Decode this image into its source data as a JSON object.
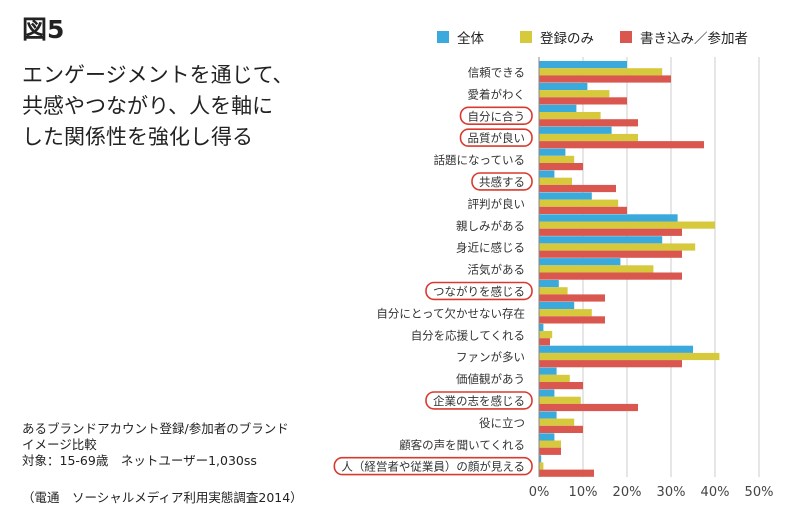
{
  "figure_label": "図5",
  "headline": [
    "エンゲージメントを通じて、",
    "共感やつながり、人を軸に",
    "した関係性を強化し得る"
  ],
  "note": [
    "あるブランドアカウント登録/参加者のブランド",
    "イメージ比較",
    "対象：15-69歳　ネットユーザー1,030ss"
  ],
  "source": "（電通　ソーシャルメディア利用実態調査2014）",
  "colors": {
    "blue": "#3aa9dc",
    "yellow": "#d6c93b",
    "red": "#d9574f",
    "circle": "#d93a2f",
    "grid": "#cccccc",
    "axis": "#888888"
  },
  "chart_data": {
    "type": "bar",
    "orientation": "horizontal",
    "categories": [
      "信頼できる",
      "愛着がわく",
      "自分に合う",
      "品質が良い",
      "話題になっている",
      "共感する",
      "評判が良い",
      "親しみがある",
      "身近に感じる",
      "活気がある",
      "つながりを感じる",
      "自分にとって欠かせない存在",
      "自分を応援してくれる",
      "ファンが多い",
      "価値観があう",
      "企業の志を感じる",
      "役に立つ",
      "顧客の声を聞いてくれる",
      "人（経営者や従業員）の顔が見える"
    ],
    "highlighted": [
      "自分に合う",
      "品質が良い",
      "共感する",
      "つながりを感じる",
      "企業の志を感じる",
      "人（経営者や従業員）の顔が見える"
    ],
    "series": [
      {
        "name": "全体",
        "color": "#3aa9dc",
        "values": [
          20,
          11,
          8.5,
          16.5,
          6,
          3.5,
          12,
          31.5,
          28,
          18.5,
          4.5,
          8,
          1,
          35,
          4,
          3.5,
          4,
          3.5,
          0.5
        ]
      },
      {
        "name": "登録のみ",
        "color": "#d6c93b",
        "values": [
          28,
          16,
          14,
          22.5,
          8,
          7.5,
          18,
          40,
          35.5,
          26,
          6.5,
          12,
          3,
          41,
          7,
          9.5,
          8,
          5,
          1
        ]
      },
      {
        "name": "書き込み／参加者",
        "color": "#d9574f",
        "values": [
          30,
          20,
          22.5,
          37.5,
          10,
          17.5,
          20,
          32.5,
          32.5,
          32.5,
          15,
          15,
          2.5,
          32.5,
          10,
          22.5,
          10,
          5,
          12.5
        ]
      }
    ],
    "xlim": [
      0,
      50
    ],
    "xticks": [
      "0%",
      "10%",
      "20%",
      "30%",
      "40%",
      "50%"
    ],
    "grid": true,
    "legend": "top"
  }
}
